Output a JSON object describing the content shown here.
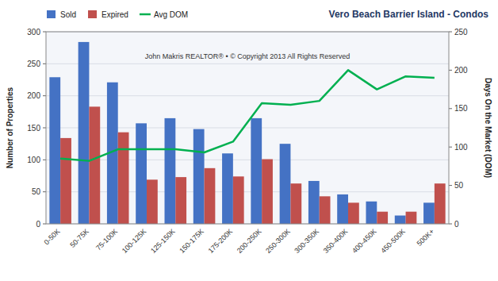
{
  "chart_data": {
    "type": "bar",
    "title": "Vero Beach Barrier Island - Condos",
    "categories": [
      "0-50K",
      "50-75K",
      "75-100K",
      "100-125K",
      "125-150K",
      "150-175K",
      "175-200K",
      "200-250K",
      "250-300K",
      "300-350K",
      "350-400K",
      "400-450K",
      "450-500K",
      "500K+"
    ],
    "series": [
      {
        "name": "Sold",
        "color": "#4472C4",
        "values": [
          229,
          284,
          221,
          157,
          165,
          148,
          110,
          165,
          125,
          67,
          46,
          35,
          13,
          33
        ]
      },
      {
        "name": "Expired",
        "color": "#C0504D",
        "values": [
          134,
          183,
          143,
          69,
          73,
          87,
          74,
          101,
          63,
          43,
          33,
          19,
          19,
          63
        ]
      },
      {
        "name": "Avg DOM",
        "color": "#00B050",
        "type": "line",
        "axis": "y2",
        "values": [
          85,
          82,
          97,
          97,
          97,
          93,
          107,
          157,
          155,
          160,
          200,
          175,
          192,
          190
        ]
      }
    ],
    "ylim": [
      0,
      300
    ],
    "yticks": [
      0,
      50,
      100,
      150,
      200,
      250,
      300
    ],
    "y2lim": [
      0,
      250
    ],
    "y2ticks": [
      0,
      50,
      100,
      150,
      200,
      250
    ],
    "ylabel": "Number of Properties",
    "y2label": "Days On the Market (DOM)",
    "annotation": "John Makris REALTOR®  •  © Copyright 2013 All Rights Reserved",
    "grid": true,
    "legend": "upper left"
  }
}
